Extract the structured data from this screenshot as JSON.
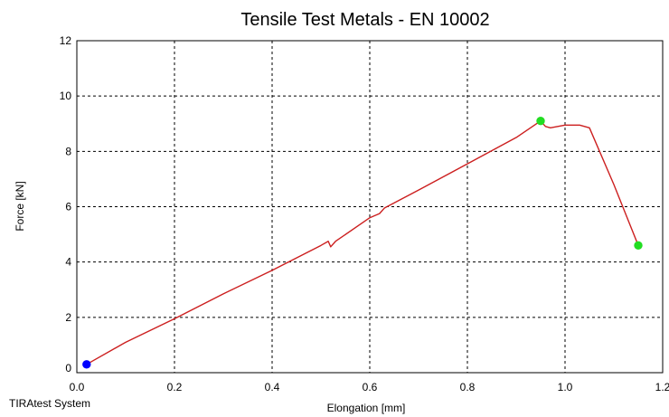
{
  "footer": {
    "system_label": "TIRAtest System"
  },
  "chart_data": {
    "type": "line",
    "title": "Tensile Test Metals - EN 10002",
    "xlabel": "Elongation [mm]",
    "ylabel": "Force [kN]",
    "xlim": [
      0,
      1.2
    ],
    "ylim": [
      0,
      12
    ],
    "xticks": [
      0,
      0.2,
      0.4,
      0.6,
      0.8,
      1.0,
      1.2
    ],
    "yticks": [
      0,
      2,
      4,
      6,
      8,
      10,
      12
    ],
    "xtick_labels": [
      "0.0",
      "0.2",
      "0.4",
      "0.6",
      "0.8",
      "1.0",
      "1.2"
    ],
    "ytick_labels": [
      "0",
      "2",
      "4",
      "6",
      "8",
      "10",
      "12"
    ],
    "grid": true,
    "colors": {
      "curve": "#cc1f1f",
      "start_marker": "#0000ff",
      "key_marker": "#22dd22",
      "grid": "#000000"
    },
    "series": [
      {
        "x": [
          0.02,
          0.1,
          0.2,
          0.3,
          0.4,
          0.5,
          0.515,
          0.52,
          0.53,
          0.6,
          0.62,
          0.63,
          0.7,
          0.8,
          0.9,
          0.95,
          0.96,
          0.97,
          1.0,
          1.03,
          1.05,
          1.1,
          1.15
        ],
        "y": [
          0.3,
          1.1,
          1.95,
          2.85,
          3.7,
          4.6,
          4.75,
          4.55,
          4.75,
          5.6,
          5.75,
          5.95,
          6.6,
          7.55,
          8.5,
          9.1,
          8.9,
          8.85,
          8.95,
          8.95,
          8.85,
          6.8,
          4.6
        ]
      }
    ],
    "markers": [
      {
        "x": 0.02,
        "y": 0.3,
        "color": "#0000ff"
      },
      {
        "x": 0.95,
        "y": 9.1,
        "color": "#22dd22"
      },
      {
        "x": 1.15,
        "y": 4.6,
        "color": "#22dd22"
      }
    ]
  }
}
